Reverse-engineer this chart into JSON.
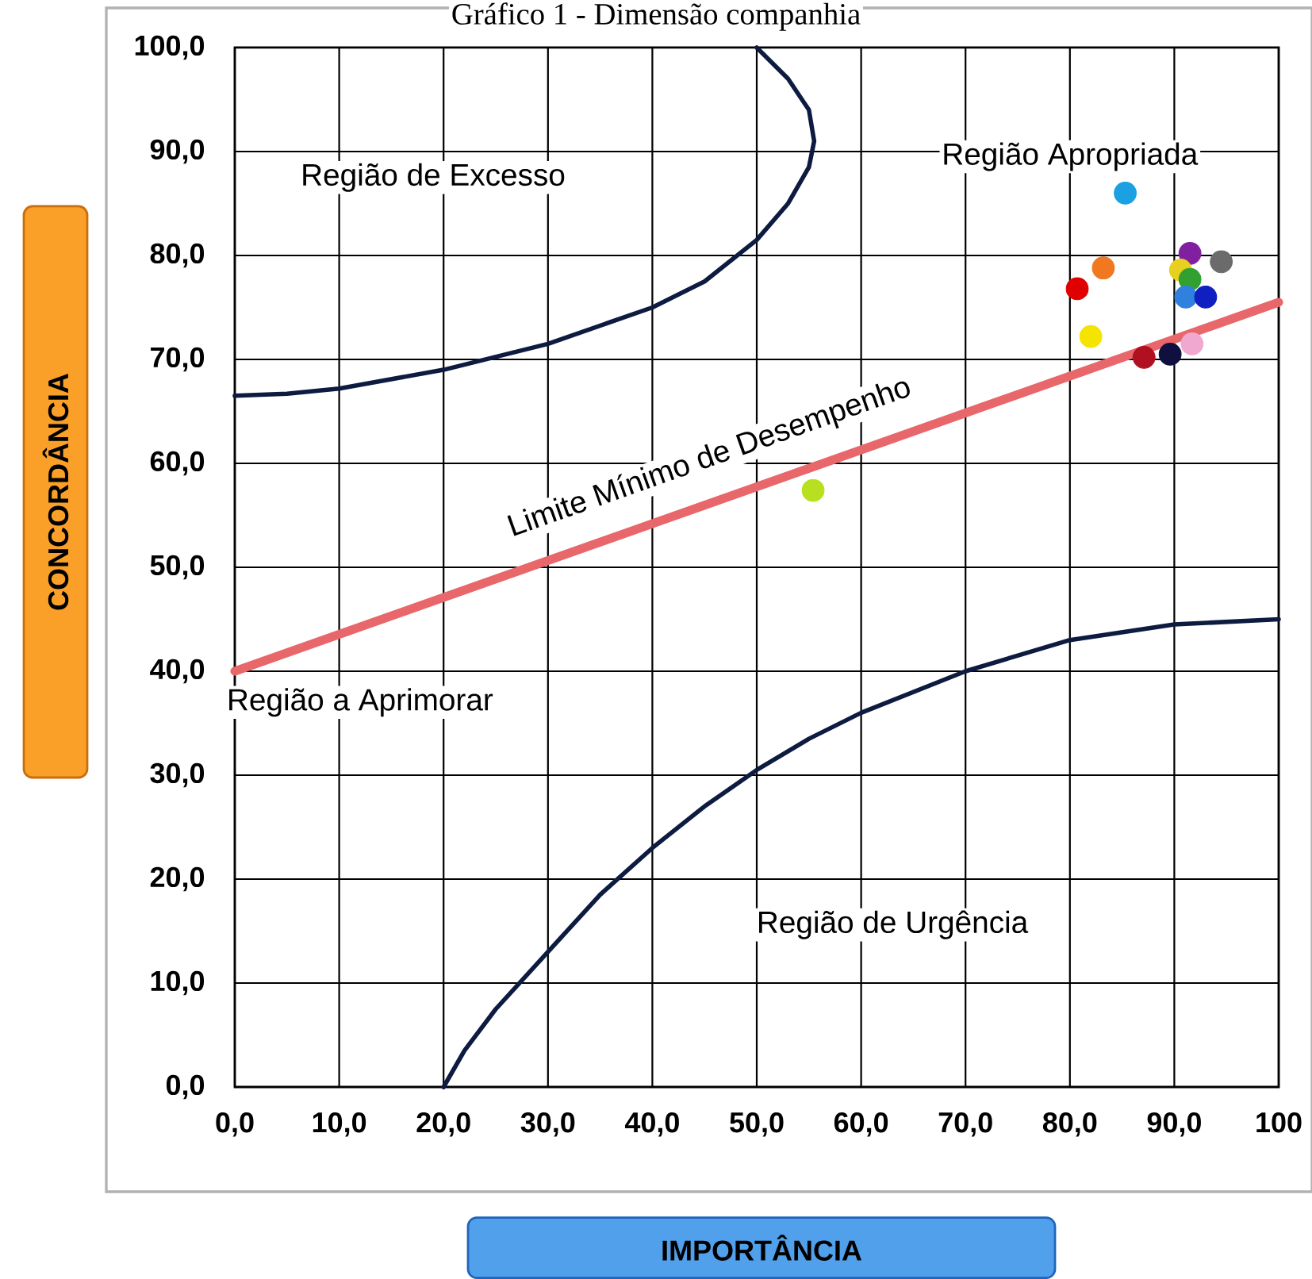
{
  "chart_data": {
    "type": "scatter",
    "title": "Gráfico 1 - Dimensão companhia",
    "xlabel": "IMPORTÂNCIA",
    "ylabel": "CONCORDÂNCIA",
    "xlim": [
      0,
      100
    ],
    "ylim": [
      0,
      100
    ],
    "xticks": [
      {
        "value": 0,
        "label": "0,0"
      },
      {
        "value": 10,
        "label": "10,0"
      },
      {
        "value": 20,
        "label": "20,0"
      },
      {
        "value": 30,
        "label": "30,0"
      },
      {
        "value": 40,
        "label": "40,0"
      },
      {
        "value": 50,
        "label": "50,0"
      },
      {
        "value": 60,
        "label": "60,0"
      },
      {
        "value": 70,
        "label": "70,0"
      },
      {
        "value": 80,
        "label": "80,0"
      },
      {
        "value": 90,
        "label": "90,0"
      },
      {
        "value": 100,
        "label": "100"
      }
    ],
    "yticks": [
      {
        "value": 0,
        "label": "0,0"
      },
      {
        "value": 10,
        "label": "10,0"
      },
      {
        "value": 20,
        "label": "20,0"
      },
      {
        "value": 30,
        "label": "30,0"
      },
      {
        "value": 40,
        "label": "40,0"
      },
      {
        "value": 50,
        "label": "50,0"
      },
      {
        "value": 60,
        "label": "60,0"
      },
      {
        "value": 70,
        "label": "70,0"
      },
      {
        "value": 80,
        "label": "80,0"
      },
      {
        "value": 90,
        "label": "90,0"
      },
      {
        "value": 100,
        "label": "100,0"
      }
    ],
    "grid": true,
    "series": [
      {
        "type": "line",
        "color": "#0d1b40",
        "x": [
          0,
          5,
          10,
          20,
          30,
          40,
          45,
          50,
          53,
          55,
          55.5,
          55,
          53,
          50
        ],
        "values": [
          66.5,
          66.7,
          67.2,
          69,
          71.5,
          75,
          77.5,
          81.5,
          85,
          88.5,
          91,
          94,
          97,
          100
        ]
      },
      {
        "type": "line",
        "color": "#0d1b40",
        "x": [
          20,
          22,
          25,
          30,
          35,
          40,
          45,
          50,
          55,
          60,
          70,
          80,
          90,
          100
        ],
        "values": [
          0,
          3.5,
          7.5,
          13,
          18.5,
          23,
          27,
          30.5,
          33.5,
          36,
          40,
          43,
          44.5,
          45
        ]
      },
      {
        "type": "line",
        "color": "#e8676a",
        "x": [
          0,
          100
        ],
        "values": [
          40,
          75.5
        ]
      },
      {
        "marker": "circle",
        "x": [
          87.1,
          89.6,
          85.3,
          80.7,
          83.2,
          82.0,
          91.5,
          94.5,
          90.6,
          91.5,
          91.1,
          93.0,
          91.7,
          55.4
        ],
        "values": [
          70.2,
          70.5,
          86.0,
          76.8,
          78.8,
          72.2,
          80.2,
          79.4,
          78.6,
          77.7,
          76.0,
          76.0,
          71.5,
          57.4
        ],
        "colors": [
          "#b01020",
          "#101040",
          "#1ba1e2",
          "#e00000",
          "#f07820",
          "#f5e400",
          "#8020a0",
          "#6b6b6b",
          "#e8d020",
          "#30a030",
          "#3080e0",
          "#1020c0",
          "#f0a8d0",
          "#b8e020"
        ]
      }
    ],
    "annotations": [
      "Região de Excesso",
      "Região Apropriada",
      "Limite Mínimo de Desempenho",
      "Região a Aprimorar",
      "Região de Urgência"
    ]
  }
}
